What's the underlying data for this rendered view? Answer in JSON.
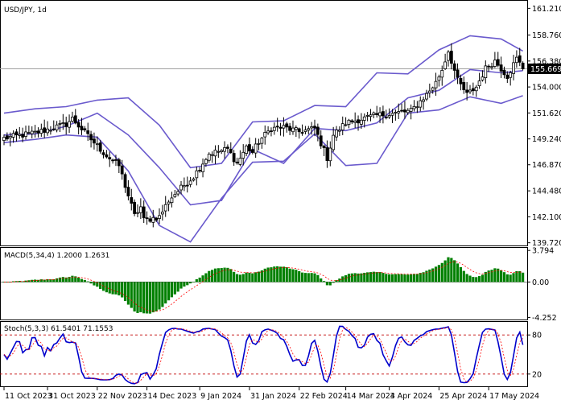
{
  "chart_data": {
    "type": "candlestick",
    "title": "USD/JPY, 1d",
    "colors": {
      "bull_body": "#ffffff",
      "bear_body": "#000000",
      "candle_outline": "#000000",
      "bollinger": "#6a5acd",
      "macd_hist": "#008000",
      "macd_signal": "#ff0000",
      "stoch_main": "#0000cc",
      "stoch_signal": "#ff0000",
      "price_line": "#a0a0a0",
      "price_badge_bg": "#000000",
      "price_badge_text": "#ffffff",
      "level_lines": "#c00000"
    },
    "price_pane": {
      "ylim": [
        139.4,
        161.9
      ],
      "yticks": [
        "161.210",
        "158.760",
        "156.380",
        "154.000",
        "151.620",
        "149.240",
        "146.870",
        "144.480",
        "142.100",
        "139.720"
      ],
      "current_price": "155.669",
      "current_price_value": 155.669,
      "bollinger_bands": {
        "x": [
          0,
          10,
          20,
          30,
          40,
          50,
          60,
          70,
          80,
          90,
          100,
          110,
          120,
          130,
          140,
          150,
          160,
          167
        ],
        "upper": [
          151.6,
          152.0,
          152.2,
          152.8,
          153.0,
          150.5,
          146.6,
          147.0,
          150.8,
          150.9,
          152.3,
          152.2,
          155.3,
          155.2,
          157.4,
          158.7,
          158.4,
          157.3
        ],
        "middle": [
          149.6,
          149.7,
          150.4,
          151.6,
          149.6,
          146.6,
          143.2,
          143.6,
          148.3,
          147.0,
          150.2,
          150.0,
          150.7,
          153.0,
          153.7,
          155.6,
          155.3,
          155.5
        ],
        "lower": [
          148.9,
          149.2,
          149.6,
          149.4,
          146.3,
          141.3,
          139.8,
          143.8,
          147.1,
          147.2,
          149.7,
          146.8,
          147.0,
          151.6,
          151.9,
          153.1,
          152.5,
          153.2
        ]
      }
    },
    "macd_pane": {
      "label": "MACD(5,34,4) 1.2000 1.2631",
      "ylim": [
        -4.6,
        4.1
      ],
      "yticks": [
        "3.794",
        "0.00",
        "-4.252"
      ]
    },
    "stoch_pane": {
      "label": "Stoch(5,3,3) 61.5401 71.1553",
      "ylim": [
        0,
        100
      ],
      "levels": [
        80,
        20
      ],
      "yticks": [
        "80",
        "20"
      ]
    },
    "x_axis": {
      "ticks": [
        {
          "label": "11 Oct 2023",
          "index": 0
        },
        {
          "label": "31 Oct 2023",
          "index": 14
        },
        {
          "label": "22 Nov 2023",
          "index": 30
        },
        {
          "label": "14 Dec 2023",
          "index": 46
        },
        {
          "label": "9 Jan 2024",
          "index": 63
        },
        {
          "label": "31 Jan 2024",
          "index": 79
        },
        {
          "label": "22 Feb 2024",
          "index": 95
        },
        {
          "label": "14 Mar 2024",
          "index": 110
        },
        {
          "label": "3 Apr 2024",
          "index": 124
        },
        {
          "label": "25 Apr 2024",
          "index": 140
        },
        {
          "label": "17 May 2024",
          "index": 156
        }
      ]
    },
    "anchors": {
      "index": [
        0,
        10,
        14,
        20,
        22,
        27,
        33,
        37,
        42,
        44,
        45,
        50,
        53,
        55,
        61,
        66,
        72,
        75,
        78,
        80,
        82,
        86,
        90,
        95,
        100,
        104,
        106,
        110,
        114,
        120,
        126,
        131,
        136,
        139,
        141,
        143,
        146,
        149,
        152,
        155,
        158,
        160,
        162,
        165,
        167
      ],
      "close": [
        149.3,
        149.8,
        150.1,
        150.6,
        151.1,
        149.5,
        147.7,
        146.8,
        142.2,
        143.0,
        141.8,
        142.1,
        143.6,
        144.2,
        145.8,
        147.9,
        148.3,
        147.0,
        148.5,
        148.0,
        149.0,
        150.2,
        150.3,
        149.9,
        150.2,
        147.5,
        149.6,
        150.7,
        151.0,
        151.4,
        151.6,
        151.8,
        153.3,
        154.4,
        155.6,
        157.3,
        154.6,
        153.3,
        154.0,
        155.7,
        156.4,
        155.7,
        155.0,
        156.6,
        155.7
      ]
    },
    "candle_count": 168
  }
}
